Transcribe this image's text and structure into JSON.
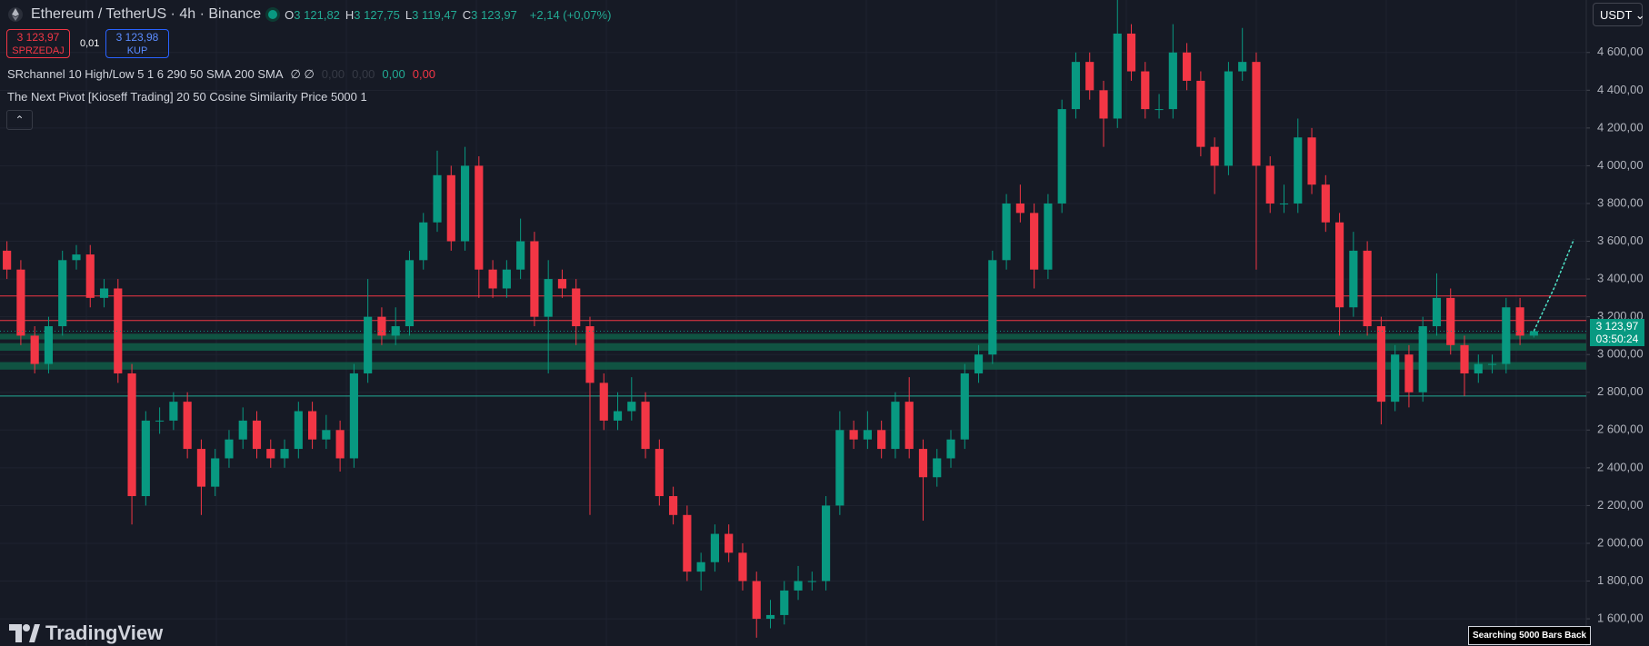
{
  "header": {
    "symbol": "Ethereum / TetherUS · 4h · Binance",
    "ohlc": [
      {
        "label": "O",
        "value": "3 121,82"
      },
      {
        "label": "H",
        "value": "3 127,75"
      },
      {
        "label": "L",
        "value": "3 119,47"
      },
      {
        "label": "C",
        "value": "3 123,97"
      }
    ],
    "change": "+2,14 (+0,07%)",
    "sell": {
      "price": "3 123,97",
      "label": "SPRZEDAJ"
    },
    "spread": "0,01",
    "buy": {
      "price": "3 123,98",
      "label": "KUP"
    },
    "indicators": [
      {
        "label": "SRchannel 10 High/Low 5 1 6 290 50 SMA 200 SMA",
        "values": [
          "∅ ∅",
          "0,00",
          "0,00",
          "0,00",
          "0,00"
        ]
      },
      {
        "label": "The Next Pivot [Kioseff Trading] 20 50 Cosine Similarity Price 5000 1",
        "values": []
      }
    ],
    "currency": "USDT",
    "status": "Searching 5000 Bars Back",
    "brand": "TradingView"
  },
  "chart_data": {
    "type": "candlestick",
    "open": [
      3550,
      3450,
      3100,
      2950,
      3150,
      3500,
      3530,
      3300,
      3350,
      2900,
      2250,
      2650,
      2650,
      2750,
      2500,
      2300,
      2450,
      2550,
      2650,
      2500,
      2450,
      2500,
      2700,
      2550,
      2600,
      2450,
      2900,
      3200,
      3100,
      3150,
      3500,
      3700,
      3950,
      3600,
      4000,
      3450,
      3350,
      3450,
      3600,
      3200,
      3400,
      3350,
      3150,
      2850,
      2650,
      2700,
      2750,
      2500,
      2250,
      2150,
      1850,
      1900,
      2050,
      1950,
      1800,
      1600,
      1620,
      1750,
      1800,
      1800,
      2200,
      2600,
      2550,
      2600,
      2500,
      2750,
      2500,
      2350,
      2450,
      2550,
      2900,
      3000,
      3500,
      3800,
      3750,
      3450,
      3800,
      4300,
      4550,
      4400,
      4250,
      4700,
      4500,
      4300,
      4300,
      4600,
      4450,
      4100,
      4000,
      4500,
      4550,
      4000,
      3800,
      3800,
      4150,
      3900,
      3700,
      3250,
      3550,
      3150,
      2750,
      3000,
      2800,
      3150,
      3300,
      3050,
      2900,
      2950,
      2950,
      3250,
      3100
    ],
    "high": [
      3600,
      3500,
      3150,
      3200,
      3550,
      3580,
      3580,
      3400,
      3400,
      2950,
      2700,
      2720,
      2800,
      2800,
      2550,
      2500,
      2600,
      2720,
      2700,
      2550,
      2550,
      2750,
      2750,
      2680,
      2650,
      2950,
      3400,
      3250,
      3250,
      3550,
      3750,
      4080,
      4000,
      4100,
      4050,
      3500,
      3500,
      3720,
      3650,
      3500,
      3450,
      3400,
      3200,
      2900,
      2800,
      2880,
      2800,
      2550,
      2300,
      2200,
      1950,
      2100,
      2100,
      2000,
      1850,
      1700,
      1800,
      1880,
      1850,
      2250,
      2700,
      2650,
      2700,
      2650,
      2800,
      2880,
      2550,
      2500,
      2600,
      2950,
      3050,
      3550,
      3850,
      3900,
      3800,
      3850,
      4350,
      4600,
      4600,
      4450,
      4880,
      4750,
      4550,
      4380,
      4750,
      4650,
      4500,
      4150,
      4550,
      4730,
      4600,
      4050,
      3900,
      4250,
      4200,
      3950,
      3750,
      3650,
      3600,
      3200,
      3050,
      3050,
      3200,
      3430,
      3350,
      3100,
      3000,
      3000,
      3300,
      3300,
      3128
    ],
    "low": [
      3400,
      3050,
      2900,
      2900,
      3100,
      3450,
      3250,
      3250,
      2850,
      2100,
      2200,
      2580,
      2600,
      2450,
      2150,
      2250,
      2400,
      2500,
      2450,
      2400,
      2400,
      2450,
      2500,
      2500,
      2380,
      2400,
      2850,
      3050,
      3050,
      3100,
      3450,
      3650,
      3550,
      3550,
      3300,
      3300,
      3300,
      3400,
      3150,
      2900,
      3300,
      3050,
      2150,
      2600,
      2600,
      2650,
      2450,
      2200,
      2100,
      1800,
      1750,
      1850,
      1900,
      1750,
      1500,
      1550,
      1570,
      1700,
      1750,
      1750,
      2150,
      2500,
      2500,
      2450,
      2450,
      2450,
      2120,
      2300,
      2400,
      2500,
      2850,
      2950,
      3450,
      3700,
      3350,
      3400,
      3750,
      4250,
      4350,
      4100,
      4200,
      4450,
      4250,
      4250,
      4250,
      4400,
      4050,
      3850,
      3950,
      4450,
      3450,
      3750,
      3750,
      3750,
      3850,
      3650,
      3100,
      3200,
      3100,
      2630,
      2700,
      2720,
      2750,
      3100,
      3000,
      2780,
      2850,
      2900,
      2900,
      3050,
      3090
    ],
    "close": [
      3450,
      3100,
      2950,
      3150,
      3500,
      3530,
      3300,
      3350,
      2900,
      2250,
      2650,
      2650,
      2750,
      2500,
      2300,
      2450,
      2550,
      2650,
      2500,
      2450,
      2500,
      2700,
      2550,
      2600,
      2450,
      2900,
      3200,
      3100,
      3150,
      3500,
      3700,
      3950,
      3600,
      4000,
      3450,
      3350,
      3450,
      3600,
      3200,
      3400,
      3350,
      3150,
      2850,
      2650,
      2700,
      2750,
      2500,
      2250,
      2150,
      1850,
      1900,
      2050,
      1950,
      1800,
      1600,
      1620,
      1750,
      1800,
      1800,
      2200,
      2600,
      2550,
      2600,
      2500,
      2750,
      2500,
      2350,
      2450,
      2550,
      2900,
      3000,
      3500,
      3800,
      3750,
      3450,
      3800,
      4300,
      4550,
      4400,
      4250,
      4700,
      4500,
      4300,
      4300,
      4600,
      4450,
      4100,
      4000,
      4500,
      4550,
      4000,
      3800,
      3800,
      4150,
      3900,
      3700,
      3250,
      3550,
      3150,
      2750,
      3000,
      2800,
      3150,
      3300,
      3050,
      2900,
      2950,
      2950,
      3250,
      3100,
      3124
    ],
    "up_color": "#089981",
    "down_color": "#f23645",
    "projection": [
      3124,
      3350,
      3610
    ],
    "projection_color": "#4fe3c8",
    "levels": [
      {
        "value": 3310,
        "color": "#f23645"
      },
      {
        "value": 3180,
        "color": "#f23645"
      },
      {
        "value": 2780,
        "color": "#22ab94"
      }
    ],
    "bands": [
      [
        3080,
        3110
      ],
      [
        3020,
        3060
      ],
      [
        2920,
        2960
      ]
    ],
    "band_color": "#0f5e48",
    "last_price": {
      "value": 3123.97,
      "label": "3 123,97"
    },
    "countdown": "03:50:24",
    "ylim": [
      1456,
      4878
    ],
    "yticks": [
      {
        "value": 1600,
        "label": "1 600,00"
      },
      {
        "value": 1800,
        "label": "1 800,00"
      },
      {
        "value": 2000,
        "label": "2 000,00"
      },
      {
        "value": 2200,
        "label": "2 200,00"
      },
      {
        "value": 2400,
        "label": "2 400,00"
      },
      {
        "value": 2600,
        "label": "2 600,00"
      },
      {
        "value": 2800,
        "label": "2 800,00"
      },
      {
        "value": 3000,
        "label": "3 000,00"
      },
      {
        "value": 3200,
        "label": "3 200,00"
      },
      {
        "value": 3400,
        "label": "3 400,00"
      },
      {
        "value": 3600,
        "label": "3 600,00"
      },
      {
        "value": 3800,
        "label": "3 800,00"
      },
      {
        "value": 4000,
        "label": "4 000,00"
      },
      {
        "value": 4200,
        "label": "4 200,00"
      },
      {
        "value": 4400,
        "label": "4 400,00"
      },
      {
        "value": 4600,
        "label": "4 600,00"
      }
    ],
    "grid": true
  }
}
